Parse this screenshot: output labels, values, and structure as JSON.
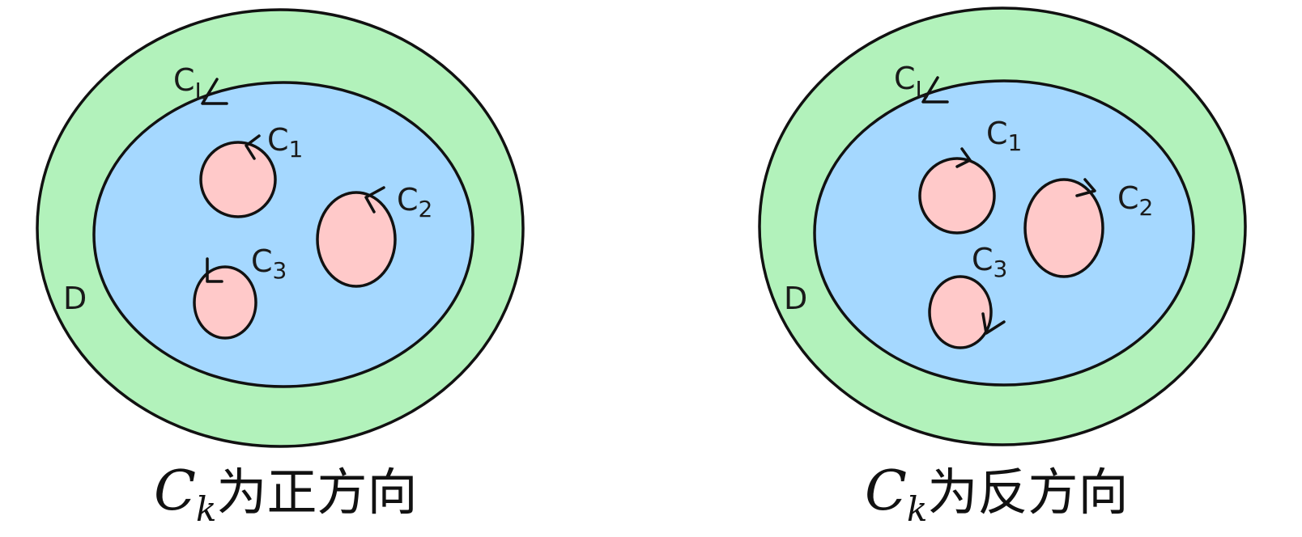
{
  "colors": {
    "outer_region": "#b2f2bb",
    "inner_region": "#a5d8ff",
    "holes": "#ffc9c9",
    "stroke": "#111111"
  },
  "panels": [
    {
      "region_label": "D",
      "boundary_label": "C",
      "boundary_sub": "L",
      "holes": [
        {
          "label": "C",
          "sub": "1"
        },
        {
          "label": "C",
          "sub": "2"
        },
        {
          "label": "C",
          "sub": "3"
        }
      ],
      "caption": {
        "symbol": "C",
        "subscript": "k",
        "text": "为正方向"
      }
    },
    {
      "region_label": "D",
      "boundary_label": "C",
      "boundary_sub": "L",
      "holes": [
        {
          "label": "C",
          "sub": "1"
        },
        {
          "label": "C",
          "sub": "2"
        },
        {
          "label": "C",
          "sub": "3"
        }
      ],
      "caption": {
        "symbol": "C",
        "subscript": "k",
        "text": "为反方向"
      }
    }
  ]
}
